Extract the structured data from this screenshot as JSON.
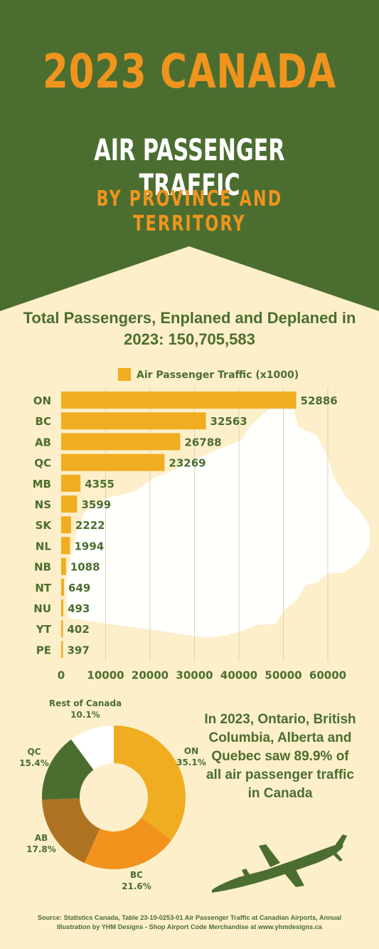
{
  "header": {
    "title": "2023 CANADA",
    "subtitle": "AIR PASSENGER TRAFFIC",
    "subtitle2": "BY PROVINCE AND TERRITORY"
  },
  "total_text": "Total Passengers, Enplaned and Deplaned in 2023: 150,705,583",
  "colors": {
    "green": "#4b6e30",
    "orange": "#f0941e",
    "bar": "#f0ad21",
    "background": "#fdefc9",
    "map": "#ffffff"
  },
  "callout": "In 2023, Ontario, British Columbia, Alberta and Quebec saw 89.9% of all air passenger traffic in Canada",
  "footer": {
    "source": "Source: Statistics Canada, Table 23-10-0253-01 Air Passenger Traffic at Canadian Airports, Annual",
    "credit": "Illustration by YHM Designs - Shop Airport Code Merchandise at www.yhmdesigns.ca"
  },
  "icons": [
    "canada-map-icon",
    "airplane-icon"
  ],
  "chart_data": [
    {
      "type": "bar",
      "orientation": "horizontal",
      "categories": [
        "ON",
        "BC",
        "AB",
        "QC",
        "MB",
        "NS",
        "SK",
        "NL",
        "NB",
        "NT",
        "NU",
        "YT",
        "PE"
      ],
      "series": [
        {
          "name": "Air Passenger Traffic (x1000)",
          "values": [
            52886,
            32563,
            26788,
            23269,
            4355,
            3599,
            2222,
            1994,
            1088,
            649,
            493,
            402,
            397
          ],
          "color": "#f0ad21"
        }
      ],
      "xlim": [
        0,
        60000
      ],
      "xticks": [
        "0",
        "10000",
        "20000",
        "30000",
        "40000",
        "50000",
        "60000"
      ],
      "grid": true,
      "legend": "top-center",
      "data_labels": true
    },
    {
      "type": "pie",
      "style": "donut",
      "slices": [
        {
          "label": "ON",
          "value": 35.1,
          "text": "35.1%",
          "color": "#f0ad21"
        },
        {
          "label": "BC",
          "value": 21.6,
          "text": "21.6%",
          "color": "#f2931e"
        },
        {
          "label": "AB",
          "value": 17.8,
          "text": "17.8%",
          "color": "#ae7322"
        },
        {
          "label": "QC",
          "value": 15.4,
          "text": "15.4%",
          "color": "#4b6e30"
        },
        {
          "label": "Rest of Canada",
          "value": 10.1,
          "text": "10.1%",
          "color": "#ffffff"
        }
      ]
    }
  ]
}
